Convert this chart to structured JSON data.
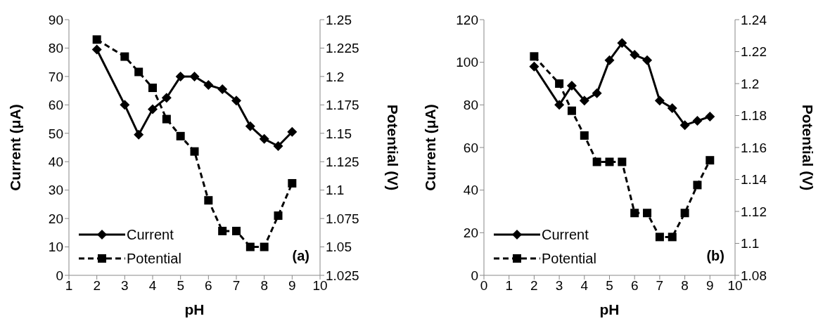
{
  "chart_data": [
    {
      "type": "line",
      "xlabel": "pH",
      "ylabel": "Current (μA)",
      "y2label": "Potential (V)",
      "xlim": [
        1,
        10
      ],
      "xticks": [
        1,
        2,
        3,
        4,
        5,
        6,
        7,
        8,
        9,
        10
      ],
      "ylim": [
        0,
        90
      ],
      "yticks": [
        0,
        10,
        20,
        30,
        40,
        50,
        60,
        70,
        80,
        90
      ],
      "y2lim": [
        1.025,
        1.25
      ],
      "y2ticks": [
        1.025,
        1.05,
        1.075,
        1.1,
        1.125,
        1.15,
        1.175,
        1.2,
        1.225,
        1.25
      ],
      "legend": "bottom left",
      "annotations": [
        "(a)"
      ],
      "series": [
        {
          "name": "Current",
          "color": "#000000",
          "marker": "diamond",
          "line_style": "solid",
          "x": [
            2,
            3,
            3.5,
            4,
            4.5,
            5,
            5.5,
            6,
            6.5,
            7,
            7.5,
            8,
            8.5,
            9
          ],
          "values": [
            79.5,
            60,
            49.5,
            58.5,
            62.5,
            70,
            70,
            67,
            65.5,
            61.5,
            52.5,
            48,
            45.5,
            50.5
          ]
        },
        {
          "name": "Potential",
          "color": "#000000",
          "marker": "square",
          "line_style": "dashed",
          "axis": "y2",
          "x": [
            2,
            3,
            3.5,
            4,
            4.5,
            5,
            5.5,
            6,
            6.5,
            7,
            7.5,
            8,
            8.5,
            9
          ],
          "values": [
            1.2325,
            1.2175,
            1.204,
            1.19,
            1.1625,
            1.1475,
            1.134,
            1.091,
            1.064,
            1.064,
            1.05,
            1.05,
            1.0775,
            1.106
          ]
        }
      ]
    },
    {
      "type": "line",
      "xlabel": "pH",
      "ylabel": "Current (μA)",
      "y2label": "Potential (V)",
      "xlim": [
        0,
        10
      ],
      "xticks": [
        0,
        1,
        2,
        3,
        4,
        5,
        6,
        7,
        8,
        9,
        10
      ],
      "ylim": [
        0,
        120
      ],
      "yticks": [
        0,
        20,
        40,
        60,
        80,
        100,
        120
      ],
      "y2lim": [
        1.08,
        1.24
      ],
      "y2ticks": [
        1.08,
        1.1,
        1.12,
        1.14,
        1.16,
        1.18,
        1.2,
        1.22,
        1.24
      ],
      "legend": "bottom left",
      "annotations": [
        "(b)"
      ],
      "series": [
        {
          "name": "Current",
          "color": "#000000",
          "marker": "diamond",
          "line_style": "solid",
          "x": [
            2,
            3,
            3.5,
            4,
            4.5,
            5,
            5.5,
            6,
            6.5,
            7,
            7.5,
            8,
            8.5,
            9
          ],
          "values": [
            98,
            80,
            89,
            82,
            85.5,
            101,
            109,
            103.5,
            101,
            82,
            78.5,
            70.5,
            72.5,
            74.5
          ]
        },
        {
          "name": "Potential",
          "color": "#000000",
          "marker": "square",
          "line_style": "dashed",
          "axis": "y2",
          "x": [
            2,
            3,
            3.5,
            4,
            4.5,
            5,
            5.5,
            6,
            6.5,
            7,
            7.5,
            8,
            8.5,
            9
          ],
          "values": [
            1.217,
            1.2,
            1.183,
            1.1675,
            1.151,
            1.151,
            1.151,
            1.119,
            1.119,
            1.104,
            1.104,
            1.119,
            1.1365,
            1.152
          ]
        }
      ]
    }
  ]
}
